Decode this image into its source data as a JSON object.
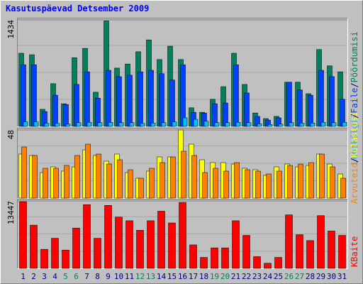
{
  "legend_separator": "/",
  "chart_data": [
    {
      "type": "bar",
      "title": "Kasutuspäevad Detsember 2009",
      "ylim": [
        0,
        1434
      ],
      "yticks": [
        1434
      ],
      "series": [
        {
          "name": "Pöördumisi",
          "color": "#00805c",
          "values": [
            985,
            965,
            230,
            575,
            305,
            925,
            1050,
            460,
            1420,
            785,
            840,
            1005,
            1165,
            900,
            1080,
            900,
            250,
            190,
            365,
            535,
            985,
            565,
            180,
            105,
            135,
            595,
            595,
            440,
            1035,
            815,
            735
          ]
        },
        {
          "name": "Faile",
          "color": "#0040ff",
          "values": [
            830,
            830,
            200,
            420,
            295,
            565,
            735,
            380,
            755,
            670,
            690,
            735,
            755,
            710,
            625,
            830,
            190,
            180,
            305,
            315,
            830,
            450,
            135,
            85,
            115,
            595,
            490,
            420,
            755,
            670,
            365
          ]
        },
        {
          "name": "Lehekülgi",
          "color": "#00c0ff",
          "values": [
            60,
            60,
            40,
            40,
            30,
            50,
            55,
            50,
            55,
            50,
            50,
            40,
            45,
            50,
            60,
            115,
            95,
            70,
            50,
            50,
            55,
            50,
            35,
            25,
            30,
            50,
            45,
            45,
            55,
            50,
            55
          ]
        }
      ]
    },
    {
      "type": "bar",
      "ylim": [
        0,
        48
      ],
      "yticks": [
        48
      ],
      "series": [
        {
          "name": "Külastusi",
          "color": "#ffff00",
          "values": [
            31,
            30,
            18,
            22,
            19,
            22,
            34,
            30,
            26,
            31,
            18,
            14,
            19,
            29,
            29,
            48,
            38,
            27,
            25,
            25,
            24,
            21,
            20,
            16,
            22,
            24,
            22,
            23,
            31,
            24,
            17
          ]
        },
        {
          "name": "Arvuteid",
          "color": "#ff8000",
          "values": [
            36,
            30,
            21,
            21,
            23,
            30,
            38,
            31,
            24,
            27,
            20,
            14,
            21,
            25,
            29,
            33,
            30,
            18,
            21,
            19,
            25,
            20,
            19,
            17,
            19,
            23,
            24,
            25,
            31,
            22,
            14
          ]
        }
      ]
    },
    {
      "type": "bar",
      "ylim": [
        0,
        13447
      ],
      "yticks": [
        13447
      ],
      "categories": [
        "1",
        "2",
        "3",
        "4",
        "5",
        "6",
        "7",
        "8",
        "9",
        "10",
        "11",
        "12",
        "13",
        "14",
        "15",
        "16",
        "17",
        "18",
        "19",
        "20",
        "21",
        "22",
        "23",
        "24",
        "25",
        "26",
        "27",
        "28",
        "29",
        "30",
        "31"
      ],
      "category_colors": [
        "#000080",
        "#000080",
        "#000080",
        "#000080",
        "#008060",
        "#008060",
        "#000080",
        "#000080",
        "#000080",
        "#000080",
        "#000080",
        "#008060",
        "#008060",
        "#000080",
        "#000080",
        "#000080",
        "#000080",
        "#000080",
        "#008060",
        "#008060",
        "#000080",
        "#000080",
        "#000080",
        "#000080",
        "#000080",
        "#008060",
        "#008060",
        "#000080",
        "#000080",
        "#000080",
        "#000080"
      ],
      "series": [
        {
          "name": "KBaite",
          "color": "#ff0000",
          "values": [
            13300,
            8620,
            3800,
            6000,
            3650,
            8040,
            12700,
            6000,
            12560,
            10230,
            9500,
            7600,
            9500,
            11400,
            9060,
            13150,
            4680,
            2190,
            4090,
            4090,
            9500,
            6580,
            2340,
            1020,
            2190,
            10670,
            6720,
            5550,
            10520,
            7450,
            6580
          ]
        }
      ]
    }
  ]
}
